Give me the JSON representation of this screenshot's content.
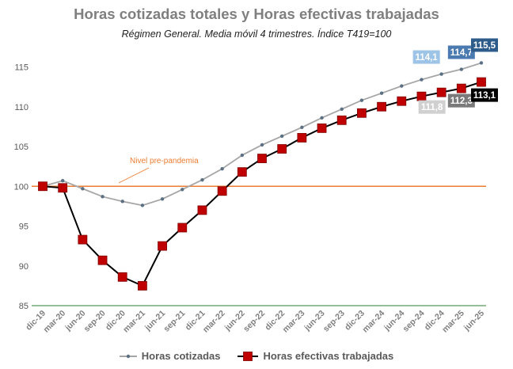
{
  "chart_data": {
    "type": "line",
    "title": "Horas cotizadas totales y Horas efectivas trabajadas",
    "subtitle": "Régimen General. Media móvil 4 trimestres. Índice T419=100",
    "categories": [
      "dic-19",
      "mar-20",
      "jun-20",
      "sep-20",
      "dic-20",
      "mar-21",
      "jun-21",
      "sep-21",
      "dic-21",
      "mar-22",
      "jun-22",
      "sep-22",
      "dic-22",
      "mar-23",
      "jun-23",
      "sep-23",
      "dic-23",
      "mar-24",
      "jun-24",
      "sep-24",
      "dic-24",
      "mar-25",
      "jun-25"
    ],
    "ylim": [
      85,
      118
    ],
    "yticks": [
      85,
      90,
      95,
      100,
      105,
      110,
      115
    ],
    "series": [
      {
        "name": "Horas cotizadas",
        "color": "#a6a6a6",
        "marker_color": "#5b7082",
        "values": [
          100.0,
          100.7,
          99.7,
          98.7,
          98.1,
          97.6,
          98.4,
          99.6,
          100.8,
          102.2,
          103.9,
          105.2,
          106.3,
          107.4,
          108.6,
          109.7,
          110.8,
          111.7,
          112.6,
          113.4,
          114.1,
          114.7,
          115.5
        ]
      },
      {
        "name": "Horas efectivas trabajadas",
        "color": "#000000",
        "marker_color": "#c00000",
        "values": [
          100.0,
          99.8,
          93.3,
          90.7,
          88.6,
          87.5,
          92.5,
          94.8,
          97.0,
          99.4,
          101.8,
          103.5,
          104.7,
          106.1,
          107.3,
          108.3,
          109.2,
          110.0,
          110.7,
          111.3,
          111.8,
          112.3,
          113.1
        ]
      }
    ],
    "reference_line": {
      "value": 100,
      "label": "Nivel pre-pandemia",
      "color": "#ed7d31"
    },
    "annotations": [
      {
        "text": "114,1",
        "index": 20,
        "series": 0,
        "bg": "#9dc3e6",
        "fg": "#ffffff",
        "side": "above",
        "dx": -1
      },
      {
        "text": "114,7",
        "index": 21,
        "series": 0,
        "bg": "#4a7ab0",
        "fg": "#ffffff",
        "side": "above",
        "dx": 0
      },
      {
        "text": "115,5",
        "index": 22,
        "series": 0,
        "bg": "#2e5c8a",
        "fg": "#ffffff",
        "side": "above",
        "dx": 0
      },
      {
        "text": "111,8",
        "index": 20,
        "series": 1,
        "bg": "#d0d0d0",
        "fg": "#ffffff",
        "side": "below",
        "dx": -1
      },
      {
        "text": "112,3",
        "index": 21,
        "series": 1,
        "bg": "#7a7a7a",
        "fg": "#ffffff",
        "side": "below",
        "dx": 0
      },
      {
        "text": "113,1",
        "index": 22,
        "series": 1,
        "bg": "#000000",
        "fg": "#ffffff",
        "side": "below",
        "dx": 0
      }
    ]
  }
}
